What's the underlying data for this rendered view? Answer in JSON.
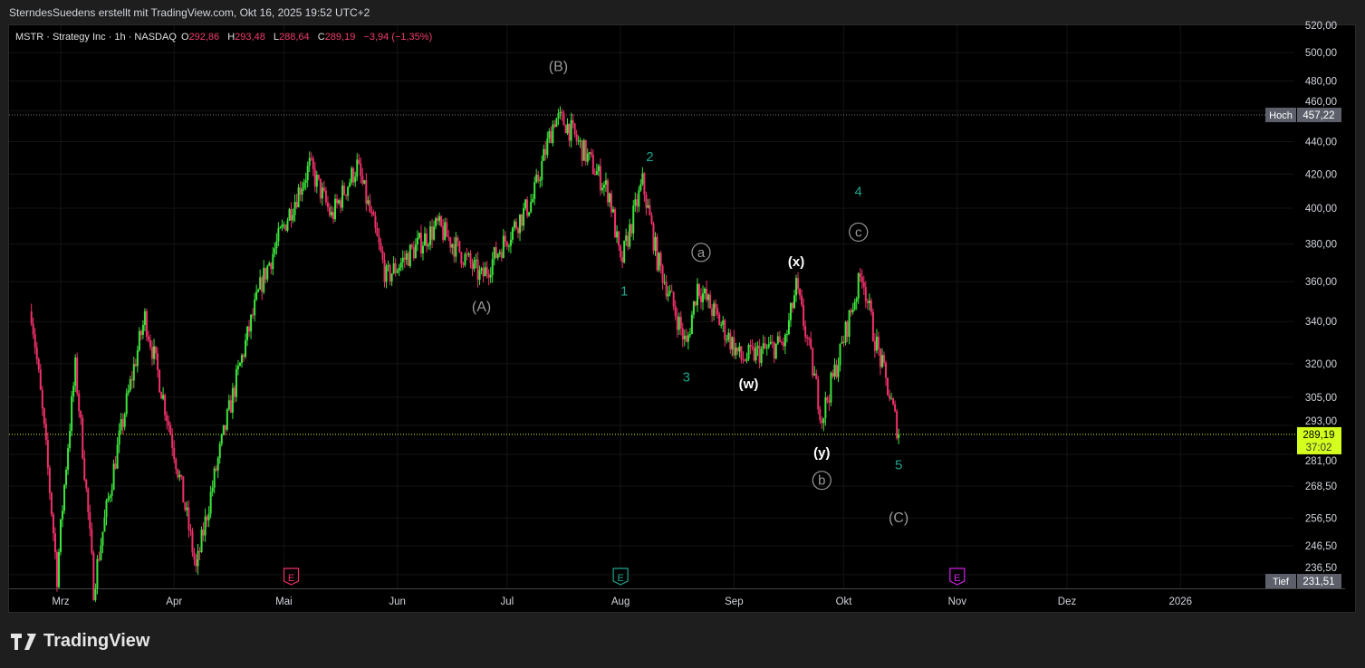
{
  "header": {
    "caption": "SterndesSuedens erstellt mit TradingView.com, Okt 16, 2025 19:52 UTC+2"
  },
  "legend": {
    "symbol": "MSTR · Strategy Inc · 1h · NASDAQ",
    "open_label": "O",
    "open": "292,86",
    "high_label": "H",
    "high": "293,48",
    "low_label": "L",
    "low": "288,64",
    "close_label": "C",
    "close": "289,19",
    "change": "−3,94 (−1,35%)"
  },
  "footer": {
    "brand": "TradingView"
  },
  "colors": {
    "up": "#3ce63c",
    "down": "#f0306a",
    "wave_minor": "#1fa58c",
    "wave_major": "#9a9a9a",
    "wave_sub": "#ffffff",
    "last_price_bg": "#d4ff1e"
  },
  "chart_data": {
    "type": "candlestick",
    "scale": "log",
    "ylim": [
      231.51,
      520
    ],
    "y_ticks": [
      "520,00",
      "500,00",
      "480,00",
      "460,00",
      "440,00",
      "420,00",
      "400,00",
      "380,00",
      "360,00",
      "340,00",
      "320,00",
      "305,00",
      "293,00",
      "281,00",
      "268,50",
      "256,50",
      "246,50",
      "236,50"
    ],
    "y_tick_values": [
      520,
      500,
      480,
      460,
      440,
      420,
      400,
      380,
      360,
      340,
      320,
      305,
      293,
      281,
      268.5,
      256.5,
      246.5,
      236.5
    ],
    "x_ticks": [
      {
        "label": "Mrz",
        "date": "2025-03-01"
      },
      {
        "label": "Apr",
        "date": "2025-04-01"
      },
      {
        "label": "Mai",
        "date": "2025-05-01"
      },
      {
        "label": "Jun",
        "date": "2025-06-01"
      },
      {
        "label": "Jul",
        "date": "2025-07-01"
      },
      {
        "label": "Aug",
        "date": "2025-08-01"
      },
      {
        "label": "Sep",
        "date": "2025-09-01"
      },
      {
        "label": "Okt",
        "date": "2025-10-01"
      },
      {
        "label": "Nov",
        "date": "2025-11-01"
      },
      {
        "label": "Dez",
        "date": "2025-12-01"
      },
      {
        "label": "2026",
        "date": "2026-01-01"
      }
    ],
    "price_path": [
      [
        "2025-02-21",
        345
      ],
      [
        "2025-02-28",
        236
      ],
      [
        "2025-03-05",
        318
      ],
      [
        "2025-03-10",
        232
      ],
      [
        "2025-03-24",
        342
      ],
      [
        "2025-04-07",
        238
      ],
      [
        "2025-04-25",
        360
      ],
      [
        "2025-05-08",
        425
      ],
      [
        "2025-05-14",
        395
      ],
      [
        "2025-05-21",
        425
      ],
      [
        "2025-05-29",
        362
      ],
      [
        "2025-06-12",
        390
      ],
      [
        "2025-06-24",
        362
      ],
      [
        "2025-07-08",
        405
      ],
      [
        "2025-07-14",
        455
      ],
      [
        "2025-07-17",
        452
      ],
      [
        "2025-07-29",
        408
      ],
      [
        "2025-08-01",
        368
      ],
      [
        "2025-08-07",
        415
      ],
      [
        "2025-08-11",
        372
      ],
      [
        "2025-08-19",
        328
      ],
      [
        "2025-08-22",
        358
      ],
      [
        "2025-09-03",
        322
      ],
      [
        "2025-09-15",
        330
      ],
      [
        "2025-09-18",
        357
      ],
      [
        "2025-09-25",
        296
      ],
      [
        "2025-09-30",
        325
      ],
      [
        "2025-10-06",
        365
      ],
      [
        "2025-10-09",
        335
      ],
      [
        "2025-10-16",
        289.19
      ]
    ],
    "high_marker": {
      "label": "Hoch",
      "value": "457,22",
      "price": 457.22
    },
    "low_marker": {
      "label": "Tief",
      "value": "231,51",
      "price": 231.51
    },
    "last_price": {
      "value": "289,19",
      "countdown": "37:02",
      "price": 289.19
    },
    "wave_labels": [
      {
        "text": "(A)",
        "date": "2025-06-24",
        "price": 345,
        "style": "major"
      },
      {
        "text": "(B)",
        "date": "2025-07-15",
        "price": 487,
        "style": "major"
      },
      {
        "text": "(C)",
        "date": "2025-10-16",
        "price": 255,
        "style": "major"
      },
      {
        "text": "1",
        "date": "2025-08-02",
        "price": 353,
        "style": "minor"
      },
      {
        "text": "2",
        "date": "2025-08-09",
        "price": 428,
        "style": "minor"
      },
      {
        "text": "3",
        "date": "2025-08-19",
        "price": 312,
        "style": "minor"
      },
      {
        "text": "4",
        "date": "2025-10-05",
        "price": 407,
        "style": "minor"
      },
      {
        "text": "5",
        "date": "2025-10-16",
        "price": 275,
        "style": "minor"
      },
      {
        "text": "(w)",
        "date": "2025-09-05",
        "price": 309,
        "style": "sub"
      },
      {
        "text": "(x)",
        "date": "2025-09-18",
        "price": 368,
        "style": "sub"
      },
      {
        "text": "(y)",
        "date": "2025-09-25",
        "price": 280,
        "style": "sub"
      },
      {
        "text": "a",
        "date": "2025-08-23",
        "price": 373,
        "style": "circle"
      },
      {
        "text": "b",
        "date": "2025-09-25",
        "price": 269,
        "style": "circle"
      },
      {
        "text": "c",
        "date": "2025-10-05",
        "price": 384,
        "style": "circle"
      }
    ],
    "events": [
      {
        "text": "E",
        "date": "2025-05-03",
        "color": "#f0306a"
      },
      {
        "text": "E",
        "date": "2025-08-01",
        "color": "#1fa58c"
      },
      {
        "text": "E",
        "date": "2025-11-01",
        "color": "#d21ee6"
      }
    ]
  }
}
